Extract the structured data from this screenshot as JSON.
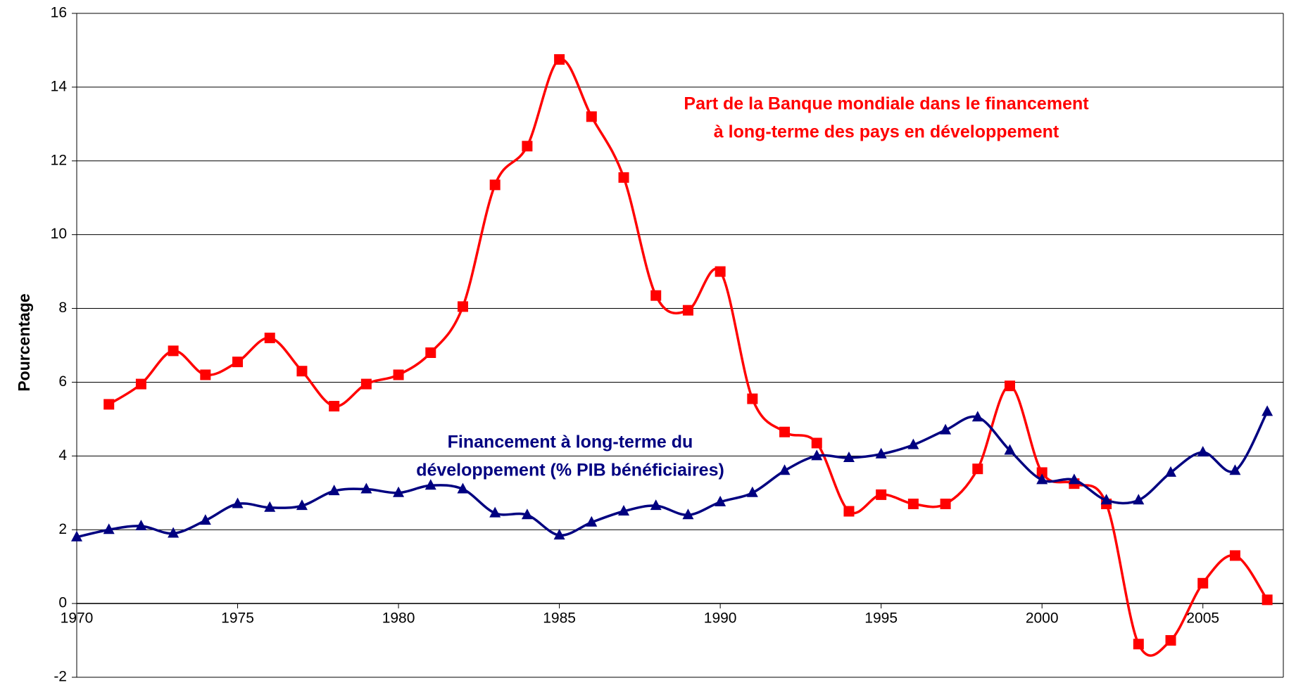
{
  "chart_data": {
    "type": "line",
    "y_label": "Pourcentage",
    "x": [
      1970,
      1971,
      1972,
      1973,
      1974,
      1975,
      1976,
      1977,
      1978,
      1979,
      1980,
      1981,
      1982,
      1983,
      1984,
      1985,
      1986,
      1987,
      1988,
      1989,
      1990,
      1991,
      1992,
      1993,
      1994,
      1995,
      1996,
      1997,
      1998,
      1999,
      2000,
      2001,
      2002,
      2003,
      2004,
      2005,
      2006,
      2007
    ],
    "series": [
      {
        "name": "Part de la Banque mondiale dans le financement à long-terme des pays en développement",
        "color": "#ff0000",
        "marker": "square",
        "values": [
          null,
          5.4,
          5.95,
          6.85,
          6.2,
          6.55,
          7.2,
          6.3,
          5.35,
          5.95,
          6.2,
          6.8,
          8.05,
          11.35,
          12.4,
          14.75,
          13.2,
          11.55,
          8.35,
          7.95,
          9.0,
          5.55,
          4.65,
          4.35,
          2.5,
          2.95,
          2.7,
          2.7,
          3.65,
          5.9,
          3.55,
          3.25,
          2.7,
          -1.1,
          -1.0,
          0.55,
          1.3,
          0.1
        ]
      },
      {
        "name": "Financement à long-terme du développement (% PIB bénéficiaires)",
        "color": "#000080",
        "marker": "triangle",
        "values": [
          1.8,
          2.0,
          2.1,
          1.9,
          2.25,
          2.7,
          2.6,
          2.65,
          3.05,
          3.1,
          3.0,
          3.2,
          3.1,
          2.45,
          2.4,
          1.85,
          2.2,
          2.5,
          2.65,
          2.4,
          2.75,
          3.0,
          3.6,
          4.0,
          3.95,
          4.05,
          4.3,
          4.7,
          5.05,
          4.15,
          3.35,
          3.35,
          2.8,
          2.8,
          3.55,
          4.1,
          3.6,
          5.2
        ]
      }
    ],
    "annotations": [
      {
        "lines": [
          "Part de la Banque mondiale dans le financement",
          "à long-terme des pays en développement"
        ],
        "color": "#ff0000"
      },
      {
        "lines": [
          "Financement à long-terme du",
          "développement (% PIB bénéficiaires)"
        ],
        "color": "#000080"
      }
    ],
    "xlim": [
      1970,
      2007.5
    ],
    "xticks": [
      1970,
      1975,
      1980,
      1985,
      1990,
      1995,
      2000,
      2005
    ],
    "ylim": [
      -2,
      16
    ],
    "yticks": [
      -2,
      0,
      2,
      4,
      6,
      8,
      10,
      12,
      14,
      16
    ],
    "grid": true,
    "smooth": true
  }
}
